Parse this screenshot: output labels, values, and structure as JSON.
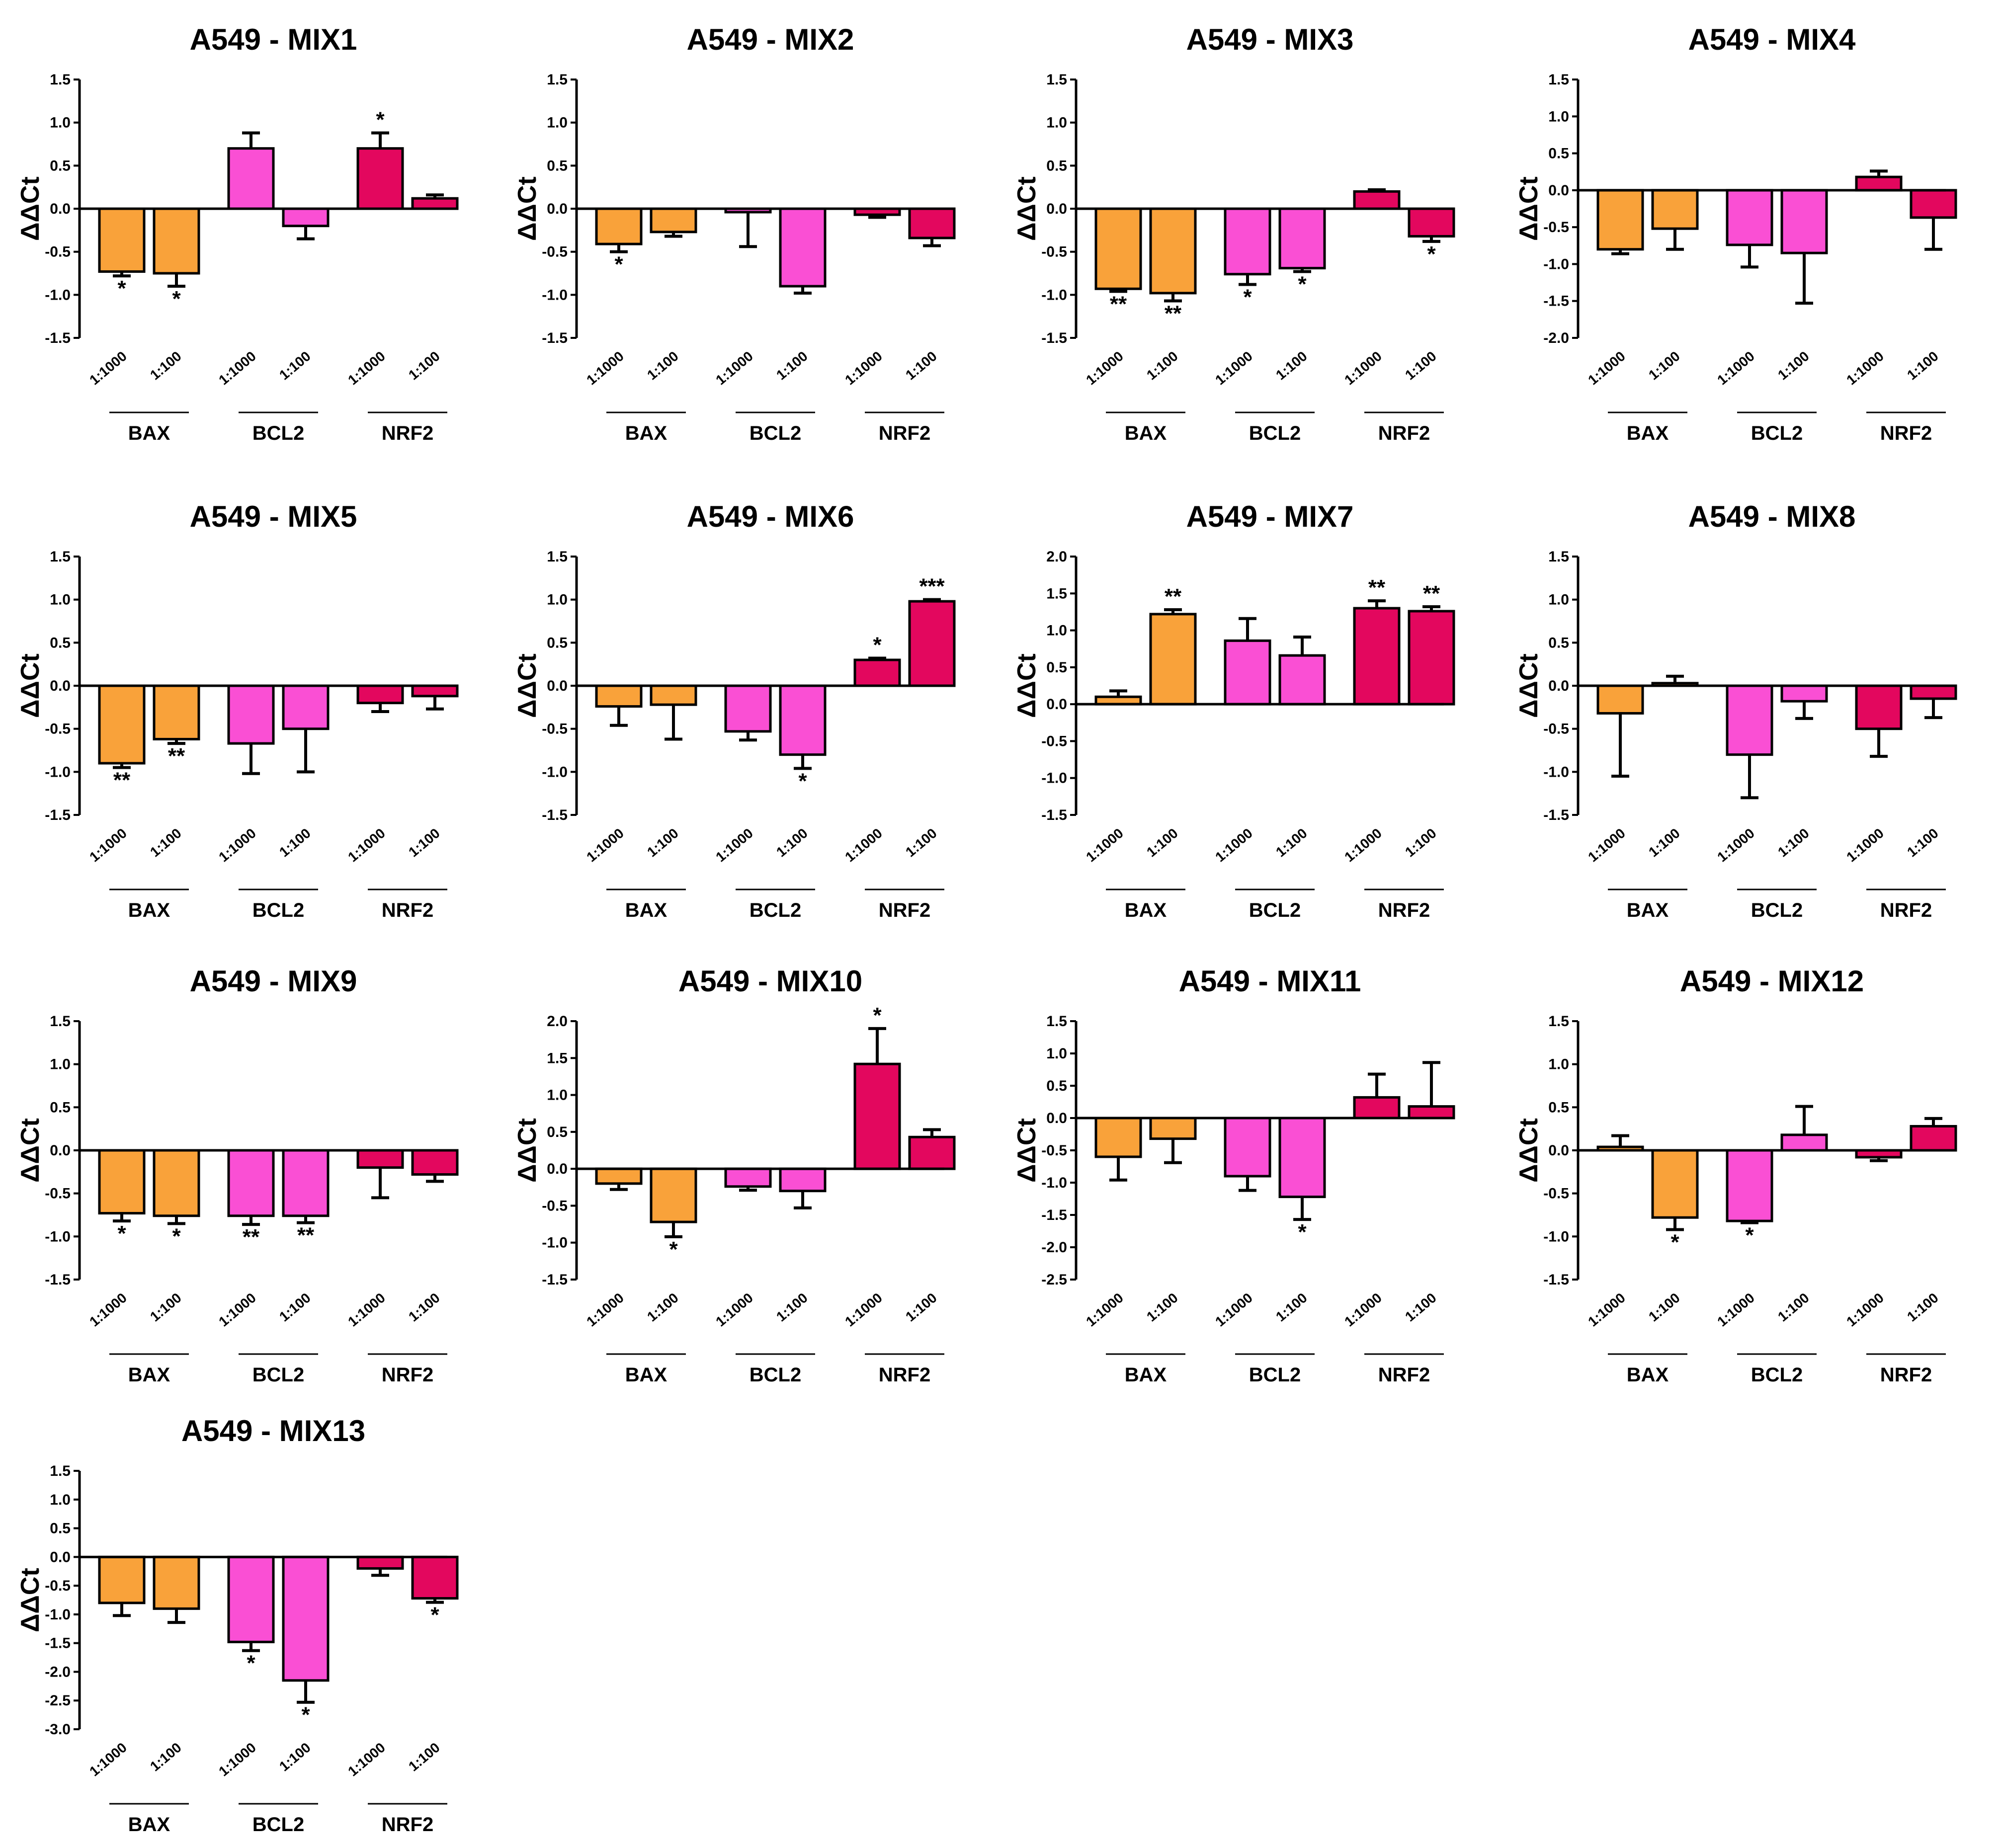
{
  "colors": {
    "BAX": "#F9A23A",
    "BCL2": "#FA4FD4",
    "NRF2": "#E3075E",
    "axis": "#000000"
  },
  "chart_data": [
    {
      "type": "bar",
      "title": "A549 - MIX1",
      "ylabel": "ΔΔCt",
      "ylim": [
        -1.5,
        1.5
      ],
      "ticks": [
        -1.5,
        -1.0,
        -0.5,
        0.0,
        0.5,
        1.0,
        1.5
      ],
      "groups": [
        "BAX",
        "BCL2",
        "NRF2"
      ],
      "categories": [
        "1:1000",
        "1:100",
        "1:1000",
        "1:100",
        "1:1000",
        "1:100"
      ],
      "values": [
        -0.73,
        -0.75,
        0.7,
        -0.2,
        0.7,
        0.12
      ],
      "errors": [
        0.05,
        0.15,
        0.18,
        0.15,
        0.18,
        0.04
      ],
      "significance": [
        "*",
        "*",
        "",
        "",
        "*",
        ""
      ]
    },
    {
      "type": "bar",
      "title": "A549 - MIX2",
      "ylabel": "ΔΔCt",
      "ylim": [
        -1.5,
        1.5
      ],
      "ticks": [
        -1.5,
        -1.0,
        -0.5,
        0.0,
        0.5,
        1.0,
        1.5
      ],
      "groups": [
        "BAX",
        "BCL2",
        "NRF2"
      ],
      "categories": [
        "1:1000",
        "1:100",
        "1:1000",
        "1:100",
        "1:1000",
        "1:100"
      ],
      "values": [
        -0.41,
        -0.27,
        -0.04,
        -0.9,
        -0.07,
        -0.34
      ],
      "errors": [
        0.09,
        0.05,
        0.4,
        0.08,
        0.03,
        0.09
      ],
      "significance": [
        "*",
        "",
        "",
        "",
        "",
        ""
      ]
    },
    {
      "type": "bar",
      "title": "A549 - MIX3",
      "ylabel": "ΔΔCt",
      "ylim": [
        -1.5,
        1.5
      ],
      "ticks": [
        -1.5,
        -1.0,
        -0.5,
        0.0,
        0.5,
        1.0,
        1.5
      ],
      "groups": [
        "BAX",
        "BCL2",
        "NRF2"
      ],
      "categories": [
        "1:1000",
        "1:100",
        "1:1000",
        "1:100",
        "1:1000",
        "1:100"
      ],
      "values": [
        -0.93,
        -0.98,
        -0.76,
        -0.69,
        0.2,
        -0.32
      ],
      "errors": [
        0.03,
        0.09,
        0.12,
        0.04,
        0.02,
        0.06
      ],
      "significance": [
        "**",
        "**",
        "*",
        "*",
        "",
        "*"
      ]
    },
    {
      "type": "bar",
      "title": "A549 - MIX4",
      "ylabel": "ΔΔCt",
      "ylim": [
        -2.0,
        1.5
      ],
      "ticks": [
        -2.0,
        -1.5,
        -1.0,
        -0.5,
        0.0,
        0.5,
        1.0,
        1.5
      ],
      "groups": [
        "BAX",
        "BCL2",
        "NRF2"
      ],
      "categories": [
        "1:1000",
        "1:100",
        "1:1000",
        "1:100",
        "1:1000",
        "1:100"
      ],
      "values": [
        -0.8,
        -0.52,
        -0.74,
        -0.85,
        0.18,
        -0.37
      ],
      "errors": [
        0.06,
        0.28,
        0.3,
        0.68,
        0.08,
        0.43
      ],
      "significance": [
        "",
        "",
        "",
        "",
        "",
        ""
      ]
    },
    {
      "type": "bar",
      "title": "A549 - MIX5",
      "ylabel": "ΔΔCt",
      "ylim": [
        -1.5,
        1.5
      ],
      "ticks": [
        -1.5,
        -1.0,
        -0.5,
        0.0,
        0.5,
        1.0,
        1.5
      ],
      "groups": [
        "BAX",
        "BCL2",
        "NRF2"
      ],
      "categories": [
        "1:1000",
        "1:100",
        "1:1000",
        "1:100",
        "1:1000",
        "1:100"
      ],
      "values": [
        -0.9,
        -0.62,
        -0.67,
        -0.5,
        -0.2,
        -0.12
      ],
      "errors": [
        0.05,
        0.05,
        0.35,
        0.5,
        0.1,
        0.15
      ],
      "significance": [
        "**",
        "**",
        "",
        "",
        "",
        ""
      ]
    },
    {
      "type": "bar",
      "title": "A549 - MIX6",
      "ylabel": "ΔΔCt",
      "ylim": [
        -1.5,
        1.5
      ],
      "ticks": [
        -1.5,
        -1.0,
        -0.5,
        0.0,
        0.5,
        1.0,
        1.5
      ],
      "groups": [
        "BAX",
        "BCL2",
        "NRF2"
      ],
      "categories": [
        "1:1000",
        "1:100",
        "1:1000",
        "1:100",
        "1:1000",
        "1:100"
      ],
      "values": [
        -0.24,
        -0.22,
        -0.53,
        -0.8,
        0.3,
        0.98
      ],
      "errors": [
        0.22,
        0.4,
        0.1,
        0.16,
        0.02,
        0.02
      ],
      "significance": [
        "",
        "",
        "",
        "*",
        "*",
        "***"
      ]
    },
    {
      "type": "bar",
      "title": "A549 - MIX7",
      "ylabel": "ΔΔCt",
      "ylim": [
        -1.5,
        2.0
      ],
      "ticks": [
        -1.5,
        -1.0,
        -0.5,
        0.0,
        0.5,
        1.0,
        1.5,
        2.0
      ],
      "groups": [
        "BAX",
        "BCL2",
        "NRF2"
      ],
      "categories": [
        "1:1000",
        "1:100",
        "1:1000",
        "1:100",
        "1:1000",
        "1:100"
      ],
      "values": [
        0.1,
        1.22,
        0.86,
        0.66,
        1.3,
        1.26
      ],
      "errors": [
        0.08,
        0.06,
        0.3,
        0.25,
        0.1,
        0.06
      ],
      "significance": [
        "",
        "**",
        "",
        "",
        "**",
        "**"
      ]
    },
    {
      "type": "bar",
      "title": "A549 - MIX8",
      "ylabel": "ΔΔCt",
      "ylim": [
        -1.5,
        1.5
      ],
      "ticks": [
        -1.5,
        -1.0,
        -0.5,
        0.0,
        0.5,
        1.0,
        1.5
      ],
      "groups": [
        "BAX",
        "BCL2",
        "NRF2"
      ],
      "categories": [
        "1:1000",
        "1:100",
        "1:1000",
        "1:100",
        "1:1000",
        "1:100"
      ],
      "values": [
        -0.32,
        0.03,
        -0.8,
        -0.18,
        -0.5,
        -0.15
      ],
      "errors": [
        0.73,
        0.08,
        0.5,
        0.2,
        0.32,
        0.22
      ],
      "significance": [
        "",
        "",
        "",
        "",
        "",
        ""
      ]
    },
    {
      "type": "bar",
      "title": "A549 - MIX9",
      "ylabel": "ΔΔCt",
      "ylim": [
        -1.5,
        1.5
      ],
      "ticks": [
        -1.5,
        -1.0,
        -0.5,
        0.0,
        0.5,
        1.0,
        1.5
      ],
      "groups": [
        "BAX",
        "BCL2",
        "NRF2"
      ],
      "categories": [
        "1:1000",
        "1:100",
        "1:1000",
        "1:100",
        "1:1000",
        "1:100"
      ],
      "values": [
        -0.73,
        -0.76,
        -0.76,
        -0.76,
        -0.2,
        -0.28
      ],
      "errors": [
        0.09,
        0.09,
        0.1,
        0.08,
        0.35,
        0.08
      ],
      "significance": [
        "*",
        "*",
        "**",
        "**",
        "",
        ""
      ]
    },
    {
      "type": "bar",
      "title": "A549 - MIX10",
      "ylabel": "ΔΔCt",
      "ylim": [
        -1.5,
        2.0
      ],
      "ticks": [
        -1.5,
        -1.0,
        -0.5,
        0.0,
        0.5,
        1.0,
        1.5,
        2.0
      ],
      "groups": [
        "BAX",
        "BCL2",
        "NRF2"
      ],
      "categories": [
        "1:1000",
        "1:100",
        "1:1000",
        "1:100",
        "1:1000",
        "1:100"
      ],
      "values": [
        -0.2,
        -0.72,
        -0.24,
        -0.3,
        1.42,
        0.43
      ],
      "errors": [
        0.08,
        0.2,
        0.05,
        0.23,
        0.48,
        0.1
      ],
      "significance": [
        "",
        "*",
        "",
        "",
        "*",
        ""
      ]
    },
    {
      "type": "bar",
      "title": "A549 - MIX11",
      "ylabel": "ΔΔCt",
      "ylim": [
        -2.5,
        1.5
      ],
      "ticks": [
        -2.5,
        -2.0,
        -1.5,
        -1.0,
        -0.5,
        0.0,
        0.5,
        1.0,
        1.5
      ],
      "groups": [
        "BAX",
        "BCL2",
        "NRF2"
      ],
      "categories": [
        "1:1000",
        "1:100",
        "1:1000",
        "1:100",
        "1:1000",
        "1:100"
      ],
      "values": [
        -0.6,
        -0.32,
        -0.9,
        -1.22,
        0.32,
        0.18
      ],
      "errors": [
        0.36,
        0.37,
        0.22,
        0.35,
        0.36,
        0.68
      ],
      "significance": [
        "",
        "",
        "",
        "*",
        "",
        ""
      ]
    },
    {
      "type": "bar",
      "title": "A549 - MIX12",
      "ylabel": "ΔΔCt",
      "ylim": [
        -1.5,
        1.5
      ],
      "ticks": [
        -1.5,
        -1.0,
        -0.5,
        0.0,
        0.5,
        1.0,
        1.5
      ],
      "groups": [
        "BAX",
        "BCL2",
        "NRF2"
      ],
      "categories": [
        "1:1000",
        "1:100",
        "1:1000",
        "1:100",
        "1:1000",
        "1:100"
      ],
      "values": [
        0.04,
        -0.78,
        -0.82,
        0.18,
        -0.08,
        0.28
      ],
      "errors": [
        0.13,
        0.14,
        0.02,
        0.33,
        0.04,
        0.09
      ],
      "significance": [
        "",
        "*",
        "*",
        "",
        "",
        ""
      ]
    },
    {
      "type": "bar",
      "title": "A549 - MIX13",
      "ylabel": "ΔΔCt",
      "ylim": [
        -3.0,
        1.5
      ],
      "ticks": [
        -3.0,
        -2.5,
        -2.0,
        -1.5,
        -1.0,
        -0.5,
        0.0,
        0.5,
        1.0,
        1.5
      ],
      "groups": [
        "BAX",
        "BCL2",
        "NRF2"
      ],
      "categories": [
        "1:1000",
        "1:100",
        "1:1000",
        "1:100",
        "1:1000",
        "1:100"
      ],
      "values": [
        -0.8,
        -0.9,
        -1.48,
        -2.15,
        -0.2,
        -0.72
      ],
      "errors": [
        0.22,
        0.24,
        0.15,
        0.38,
        0.12,
        0.07
      ],
      "significance": [
        "",
        "",
        "*",
        "*",
        "",
        "*"
      ]
    }
  ]
}
